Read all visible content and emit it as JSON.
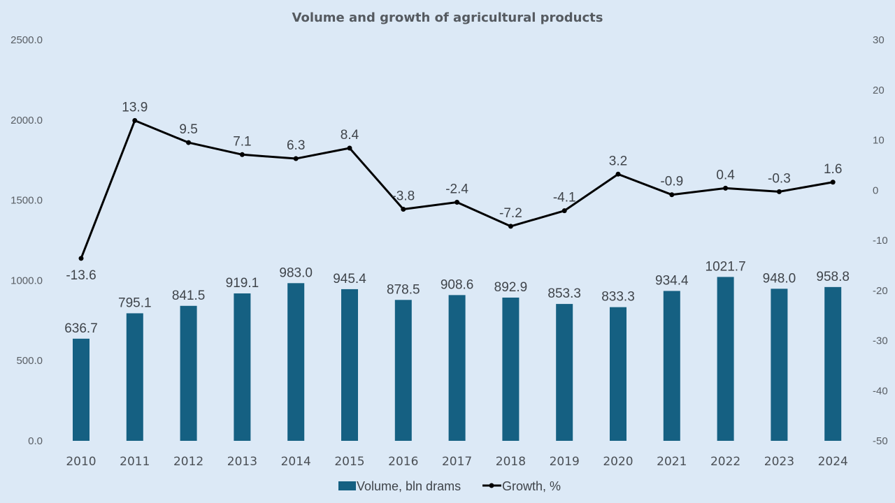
{
  "chart_data": {
    "type": "bar+line",
    "title": "Volume and growth of agricultural products",
    "categories": [
      "2010",
      "2011",
      "2012",
      "2013",
      "2014",
      "2015",
      "2016",
      "2017",
      "2018",
      "2019",
      "2020",
      "2021",
      "2022",
      "2023",
      "2024"
    ],
    "series": [
      {
        "name": "Volume, bln drams",
        "type": "bar",
        "axis": "left",
        "color": "#156082",
        "values": [
          636.7,
          795.1,
          841.5,
          919.1,
          983.0,
          945.4,
          878.5,
          908.6,
          892.9,
          853.3,
          833.3,
          934.4,
          1021.7,
          948.0,
          958.8
        ],
        "labels": [
          "636.7",
          "795.1",
          "841.5",
          "919.1",
          "983.0",
          "945.4",
          "878.5",
          "908.6",
          "892.9",
          "853.3",
          "833.3",
          "934.4",
          "1021.7",
          "948.0",
          "958.8"
        ]
      },
      {
        "name": "Growth, %",
        "type": "line",
        "axis": "right",
        "color": "#000000",
        "values": [
          -13.6,
          13.9,
          9.5,
          7.1,
          6.3,
          8.4,
          -3.8,
          -2.4,
          -7.2,
          -4.1,
          3.2,
          -0.9,
          0.4,
          -0.3,
          1.6
        ],
        "labels": [
          "-13.6",
          "13.9",
          "9.5",
          "7.1",
          "6.3",
          "8.4",
          "-3.8",
          "-2.4",
          "-7.2",
          "-4.1",
          "3.2",
          "-0.9",
          "0.4",
          "-0.3",
          "1.6"
        ]
      }
    ],
    "highlight": {
      "category": "2024",
      "color": "#e8000b"
    },
    "left_axis": {
      "ylim": [
        0,
        2500
      ],
      "ticks": [
        "0.0",
        "500.0",
        "1000.0",
        "1500.0",
        "2000.0",
        "2500.0"
      ],
      "tick_values": [
        0,
        500,
        1000,
        1500,
        2000,
        2500
      ]
    },
    "right_axis": {
      "ylim": [
        -50,
        30
      ],
      "ticks": [
        "-50",
        "-40",
        "-30",
        "-20",
        "-10",
        "0",
        "10",
        "20",
        "30"
      ],
      "tick_values": [
        -50,
        -40,
        -30,
        -20,
        -10,
        0,
        10,
        20,
        30
      ]
    },
    "grid": false,
    "legend": {
      "position": "bottom",
      "entries": [
        "Volume, bln drams",
        "Growth, %"
      ]
    },
    "xlabel": "",
    "ylabel": ""
  }
}
